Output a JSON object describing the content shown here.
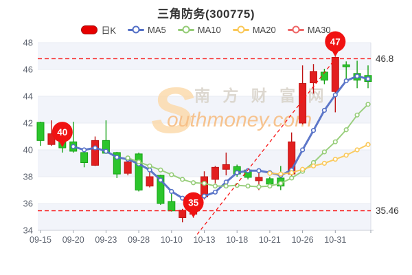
{
  "title": "三角防务(300775)",
  "legend": {
    "items": [
      {
        "key": "k",
        "label": "日K",
        "color": "#e60000",
        "marker": "candle"
      },
      {
        "key": "ma5",
        "label": "MA5",
        "color": "#5470c6",
        "marker": "line"
      },
      {
        "key": "ma10",
        "label": "MA10",
        "color": "#95cc77",
        "marker": "line"
      },
      {
        "key": "ma20",
        "label": "MA20",
        "color": "#fac858",
        "marker": "line"
      },
      {
        "key": "ma30",
        "label": "MA30",
        "color": "#ee6666",
        "marker": "line"
      }
    ]
  },
  "watermark": {
    "initial": "S",
    "cn": "南 方 财 富 网",
    "en": "outhmoney.com"
  },
  "chart_data": {
    "type": "candlestick",
    "title": "三角防务(300775)",
    "up_color": "#e21f1f",
    "up_border": "#bf1414",
    "down_color": "#2cc52c",
    "down_border": "#16a216",
    "grid": true,
    "y_axis": {
      "min": 34,
      "max": 48,
      "tick_step": 2,
      "ticks": [
        48,
        46,
        44,
        42,
        40,
        38,
        36,
        34
      ]
    },
    "x_ticks": [
      {
        "label": "09-15",
        "index": 0
      },
      {
        "label": "09-20",
        "index": 3
      },
      {
        "label": "09-23",
        "index": 6
      },
      {
        "label": "09-28",
        "index": 9
      },
      {
        "label": "10-10",
        "index": 12
      },
      {
        "label": "10-13",
        "index": 15
      },
      {
        "label": "10-18",
        "index": 18
      },
      {
        "label": "10-21",
        "index": 21
      },
      {
        "label": "10-26",
        "index": 24
      },
      {
        "label": "10-31",
        "index": 27
      }
    ],
    "candles_format": [
      "open",
      "close",
      "low",
      "high",
      "direction"
    ],
    "candles": [
      [
        42.05,
        40.7,
        40.3,
        42.1,
        "down"
      ],
      [
        40.4,
        41.2,
        40.3,
        42.2,
        "up"
      ],
      [
        40.65,
        40.15,
        39.8,
        40.7,
        "down"
      ],
      [
        40.6,
        39.9,
        39.8,
        42.1,
        "down"
      ],
      [
        39.8,
        39.05,
        38.7,
        39.85,
        "down"
      ],
      [
        38.85,
        40.7,
        38.8,
        41.0,
        "up"
      ],
      [
        40.7,
        39.75,
        39.7,
        42.2,
        "down"
      ],
      [
        39.8,
        38.2,
        37.9,
        39.85,
        "down"
      ],
      [
        38.25,
        39.1,
        38.1,
        39.3,
        "up"
      ],
      [
        39.7,
        37.0,
        36.9,
        39.8,
        "down"
      ],
      [
        37.3,
        38.0,
        37.2,
        38.9,
        "up"
      ],
      [
        38.1,
        36.0,
        35.9,
        38.15,
        "down"
      ],
      [
        36.15,
        35.45,
        35.4,
        36.8,
        "down"
      ],
      [
        34.95,
        35.5,
        34.6,
        35.6,
        "up"
      ],
      [
        35.2,
        35.6,
        34.94,
        35.8,
        "up"
      ],
      [
        36.5,
        38.0,
        36.3,
        38.4,
        "up"
      ],
      [
        37.8,
        38.7,
        37.5,
        38.8,
        "up"
      ],
      [
        38.55,
        38.9,
        38.1,
        39.8,
        "up"
      ],
      [
        38.75,
        38.2,
        38.0,
        38.9,
        "down"
      ],
      [
        38.5,
        37.95,
        37.8,
        38.6,
        "down"
      ],
      [
        37.7,
        37.95,
        37.0,
        38.45,
        "up"
      ],
      [
        37.85,
        37.45,
        37.3,
        38.0,
        "down"
      ],
      [
        37.9,
        37.3,
        37.0,
        38.8,
        "down"
      ],
      [
        38.2,
        40.6,
        38.0,
        41.3,
        "up"
      ],
      [
        42.0,
        44.95,
        41.9,
        46.3,
        "up"
      ],
      [
        45.0,
        45.85,
        44.2,
        46.4,
        "up"
      ],
      [
        45.8,
        45.2,
        44.9,
        46.05,
        "down"
      ],
      [
        44.35,
        46.9,
        42.8,
        46.95,
        "up"
      ],
      [
        46.35,
        46.2,
        45.0,
        46.6,
        "down"
      ],
      [
        45.7,
        45.2,
        44.6,
        46.65,
        "down"
      ],
      [
        45.55,
        45.1,
        44.6,
        46.3,
        "down"
      ]
    ],
    "ma_series": [
      {
        "name": "MA5",
        "color": "#5470c6",
        "start_index": 3,
        "values": [
          40.25,
          40.0,
          40.15,
          39.9,
          39.45,
          39.3,
          38.95,
          38.5,
          37.75,
          36.9,
          36.4,
          36.3,
          36.55,
          36.85,
          37.6,
          38.3,
          38.45,
          38.45,
          38.3,
          38.1,
          38.5,
          40.0,
          41.45,
          42.95,
          44.1,
          45.15,
          45.5,
          45.3
        ]
      },
      {
        "name": "MA10",
        "color": "#95cc77",
        "start_index": 8,
        "values": [
          39.4,
          39.1,
          38.8,
          38.5,
          38.15,
          37.8,
          37.55,
          37.5,
          37.3,
          37.3,
          37.35,
          37.3,
          37.25,
          37.3,
          37.5,
          37.9,
          38.4,
          39.05,
          39.85,
          40.6,
          41.5,
          42.6,
          43.4
        ]
      },
      {
        "name": "MA20",
        "color": "#fac858",
        "start_index": 21,
        "values": [
          38.25,
          38.2,
          38.3,
          38.55,
          38.8,
          39.0,
          39.3,
          39.6,
          40.0,
          40.4
        ]
      },
      {
        "name": "MA30",
        "color": "#ee6666",
        "start_index": 0,
        "values": []
      }
    ],
    "ref_lines": [
      {
        "value": 46.8,
        "label": "46.8"
      },
      {
        "value": 35.46,
        "label": "35.46"
      }
    ],
    "trend_line": {
      "from_index": 14.35,
      "from_value": 33.7,
      "to_index": 27.1,
      "to_value": 46.9
    },
    "badges": [
      {
        "label": "40",
        "index": 2,
        "value": 40.2
      },
      {
        "label": "35",
        "index": 14,
        "value": 34.94
      },
      {
        "label": "47",
        "index": 27,
        "value": 46.95
      }
    ],
    "annotation_color": "#f81414",
    "legend_position": "top"
  }
}
